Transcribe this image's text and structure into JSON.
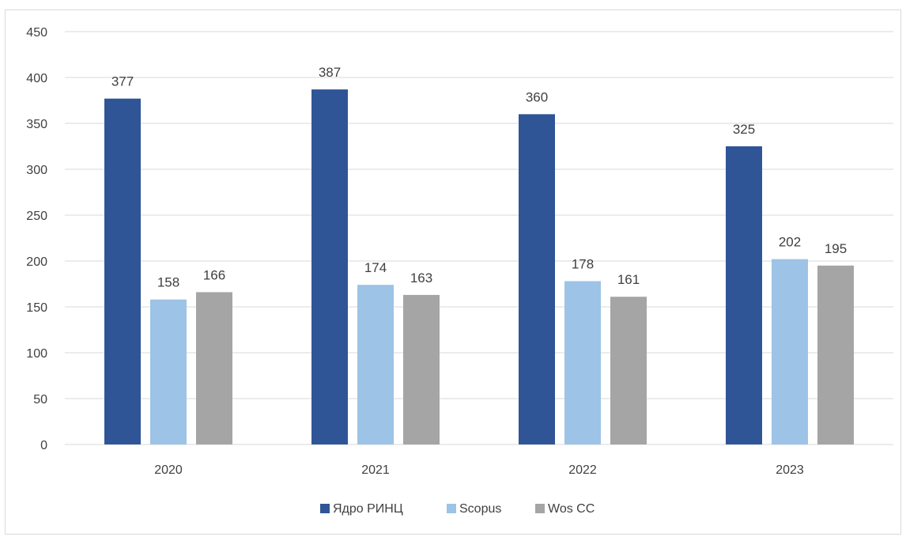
{
  "chart_data": {
    "type": "bar",
    "categories": [
      "2020",
      "2021",
      "2022",
      "2023"
    ],
    "series": [
      {
        "name": "Ядро РИНЦ",
        "values": [
          377,
          387,
          360,
          325
        ],
        "color": "#2f5597"
      },
      {
        "name": "Scopus",
        "values": [
          158,
          174,
          178,
          202
        ],
        "color": "#9dc3e6"
      },
      {
        "name": "Wos CC",
        "values": [
          166,
          163,
          161,
          195
        ],
        "color": "#a5a5a5"
      }
    ],
    "yticks": [
      "0",
      "50",
      "100",
      "150",
      "200",
      "250",
      "300",
      "350",
      "400",
      "450"
    ],
    "ylim": [
      0,
      450
    ],
    "grid": true,
    "legend_position": "bottom",
    "title": "",
    "xlabel": "",
    "ylabel": ""
  }
}
